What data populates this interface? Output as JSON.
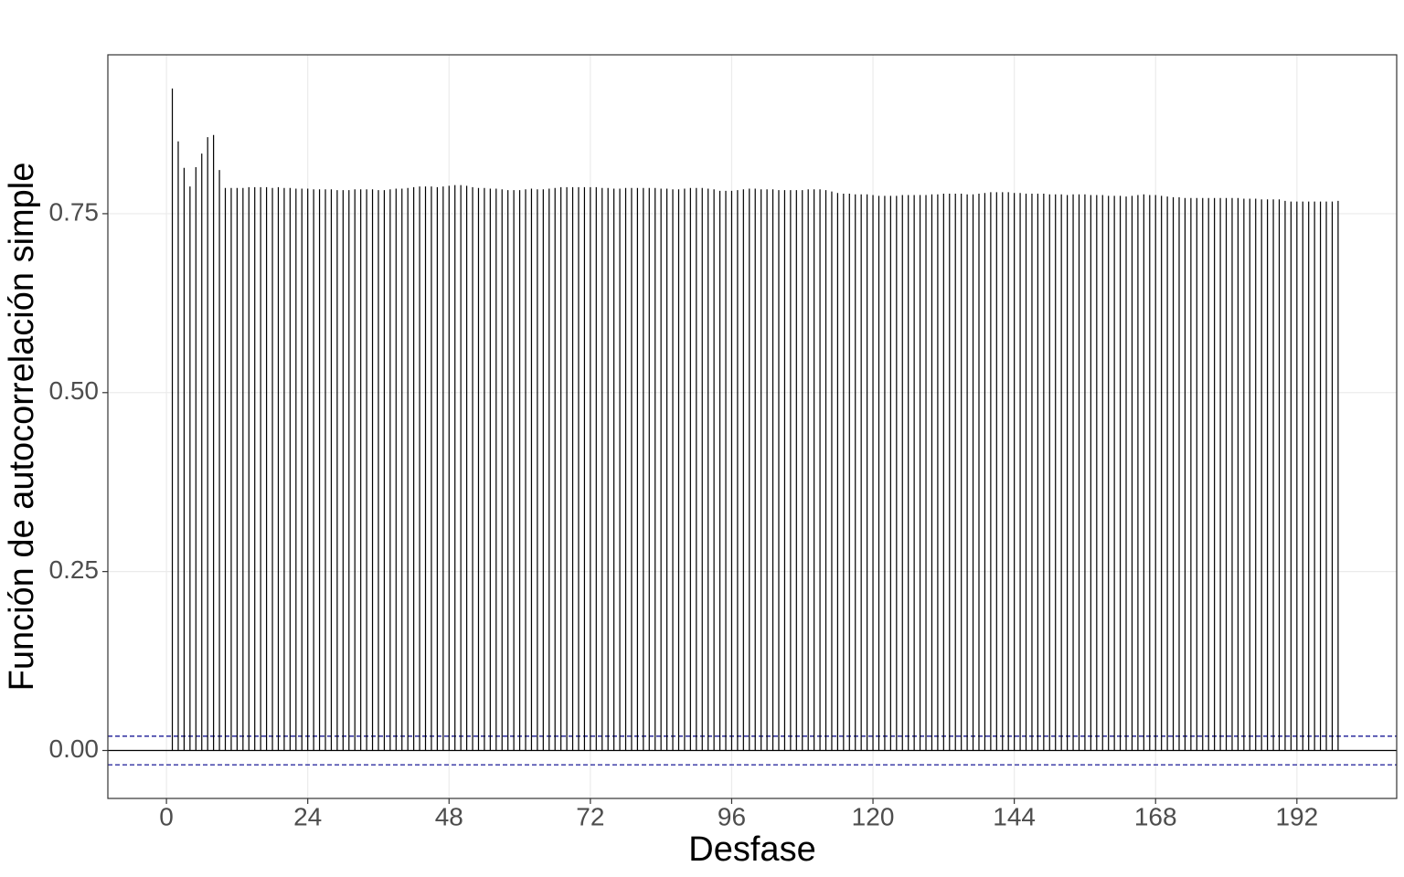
{
  "chart_data": {
    "type": "acf",
    "x_label": "Desfase",
    "y_label": "Función de autocorrelación simple",
    "x": [
      1,
      2,
      3,
      4,
      5,
      6,
      7,
      8,
      9,
      10,
      11,
      12,
      13,
      14,
      15,
      16,
      17,
      18,
      19,
      20,
      21,
      22,
      23,
      24,
      25,
      26,
      27,
      28,
      29,
      30,
      31,
      32,
      33,
      34,
      35,
      36,
      37,
      38,
      39,
      40,
      41,
      42,
      43,
      44,
      45,
      46,
      47,
      48,
      49,
      50,
      51,
      52,
      53,
      54,
      55,
      56,
      57,
      58,
      59,
      60,
      61,
      62,
      63,
      64,
      65,
      66,
      67,
      68,
      69,
      70,
      71,
      72,
      73,
      74,
      75,
      76,
      77,
      78,
      79,
      80,
      81,
      82,
      83,
      84,
      85,
      86,
      87,
      88,
      89,
      90,
      91,
      92,
      93,
      94,
      95,
      96,
      97,
      98,
      99,
      100,
      101,
      102,
      103,
      104,
      105,
      106,
      107,
      108,
      109,
      110,
      111,
      112,
      113,
      114,
      115,
      116,
      117,
      118,
      119,
      120,
      121,
      122,
      123,
      124,
      125,
      126,
      127,
      128,
      129,
      130,
      131,
      132,
      133,
      134,
      135,
      136,
      137,
      138,
      139,
      140,
      141,
      142,
      143,
      144,
      145,
      146,
      147,
      148,
      149,
      150,
      151,
      152,
      153,
      154,
      155,
      156,
      157,
      158,
      159,
      160,
      161,
      162,
      163,
      164,
      165,
      166,
      167,
      168,
      169,
      170,
      171,
      172,
      173,
      174,
      175,
      176,
      177,
      178,
      179,
      180,
      181,
      182,
      183,
      184,
      185,
      186,
      187,
      188,
      189,
      190,
      191,
      192,
      193,
      194,
      195,
      196,
      197,
      198,
      199
    ],
    "values": [
      0.925,
      0.851,
      0.814,
      0.788,
      0.815,
      0.834,
      0.857,
      0.86,
      0.811,
      0.786,
      0.786,
      0.786,
      0.786,
      0.787,
      0.787,
      0.787,
      0.787,
      0.786,
      0.787,
      0.786,
      0.786,
      0.785,
      0.785,
      0.785,
      0.784,
      0.784,
      0.784,
      0.784,
      0.783,
      0.783,
      0.783,
      0.784,
      0.784,
      0.784,
      0.784,
      0.783,
      0.783,
      0.784,
      0.785,
      0.785,
      0.786,
      0.787,
      0.788,
      0.788,
      0.788,
      0.787,
      0.788,
      0.789,
      0.79,
      0.79,
      0.789,
      0.787,
      0.786,
      0.786,
      0.785,
      0.785,
      0.784,
      0.783,
      0.783,
      0.783,
      0.784,
      0.785,
      0.784,
      0.784,
      0.785,
      0.786,
      0.787,
      0.787,
      0.787,
      0.787,
      0.787,
      0.787,
      0.787,
      0.786,
      0.786,
      0.785,
      0.785,
      0.786,
      0.786,
      0.786,
      0.786,
      0.786,
      0.786,
      0.785,
      0.785,
      0.784,
      0.784,
      0.785,
      0.786,
      0.786,
      0.786,
      0.785,
      0.784,
      0.782,
      0.782,
      0.782,
      0.783,
      0.784,
      0.785,
      0.785,
      0.784,
      0.784,
      0.784,
      0.783,
      0.783,
      0.783,
      0.783,
      0.783,
      0.784,
      0.784,
      0.784,
      0.783,
      0.781,
      0.779,
      0.778,
      0.778,
      0.777,
      0.777,
      0.777,
      0.776,
      0.775,
      0.775,
      0.775,
      0.775,
      0.776,
      0.776,
      0.776,
      0.776,
      0.776,
      0.777,
      0.777,
      0.778,
      0.778,
      0.778,
      0.778,
      0.777,
      0.777,
      0.778,
      0.779,
      0.78,
      0.78,
      0.78,
      0.78,
      0.779,
      0.779,
      0.778,
      0.778,
      0.778,
      0.778,
      0.777,
      0.777,
      0.777,
      0.776,
      0.777,
      0.777,
      0.777,
      0.776,
      0.776,
      0.776,
      0.775,
      0.775,
      0.775,
      0.774,
      0.775,
      0.776,
      0.777,
      0.776,
      0.776,
      0.775,
      0.774,
      0.773,
      0.773,
      0.772,
      0.772,
      0.772,
      0.772,
      0.772,
      0.772,
      0.772,
      0.772,
      0.772,
      0.772,
      0.771,
      0.771,
      0.771,
      0.77,
      0.77,
      0.77,
      0.77,
      0.768,
      0.767,
      0.767,
      0.767,
      0.767,
      0.767,
      0.767,
      0.767,
      0.767,
      0.768
    ],
    "color": "#000000",
    "conf_limits": [
      0.02,
      -0.02
    ],
    "hline": 0,
    "xlim": [
      -9.95,
      208.95
    ],
    "ylim": [
      -0.067,
      0.972
    ],
    "xticks": [
      0,
      24,
      48,
      72,
      96,
      120,
      144,
      168,
      192
    ],
    "yticks": [
      {
        "value": 0,
        "label": "0.00"
      },
      {
        "value": 0.25,
        "label": "0.25"
      },
      {
        "value": 0.5,
        "label": "0.50"
      },
      {
        "value": 0.75,
        "label": "0.75"
      }
    ],
    "grid": true
  }
}
